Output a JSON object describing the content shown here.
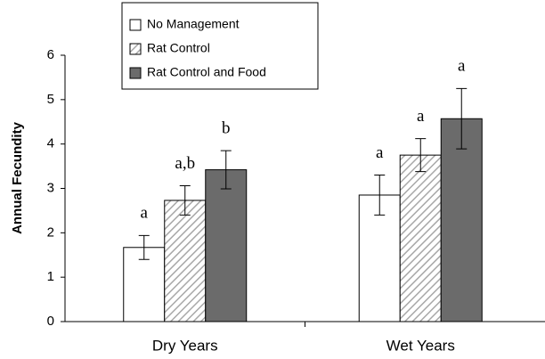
{
  "chart_data": {
    "type": "bar",
    "y_label": "Annual Fecundity",
    "categories": [
      "Dry Years",
      "Wet Years"
    ],
    "series": [
      {
        "name": "No Management",
        "color": "#ffffff",
        "hatch": false,
        "values": [
          1.67,
          2.85
        ],
        "errors": [
          0.27,
          0.45
        ],
        "letters": [
          "a",
          "a"
        ]
      },
      {
        "name": "Rat Control",
        "color": "#ffffff",
        "hatch": true,
        "values": [
          2.73,
          3.75
        ],
        "errors": [
          0.33,
          0.37
        ],
        "letters": [
          "a,b",
          "a"
        ]
      },
      {
        "name": "Rat Control and Food",
        "color": "#6b6b6b",
        "hatch": false,
        "values": [
          3.42,
          4.57
        ],
        "errors": [
          0.43,
          0.68
        ],
        "letters": [
          "b",
          "a"
        ]
      }
    ],
    "ylim": [
      0,
      6
    ],
    "yticks": [
      0,
      1,
      2,
      3,
      4,
      5,
      6
    ],
    "grid": false
  }
}
